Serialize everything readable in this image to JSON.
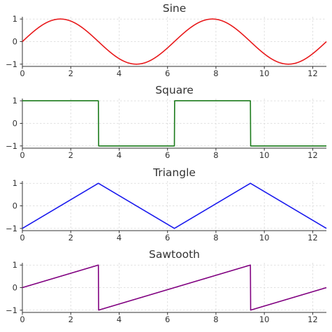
{
  "chart_data": [
    {
      "type": "line",
      "title": "Sine",
      "series": [
        {
          "color": "#e8191b",
          "wave": "sine",
          "period": 6.2832,
          "x": [
            0,
            12.566
          ],
          "ylim": [
            -1,
            1
          ]
        }
      ],
      "xlim": [
        0,
        12.566
      ],
      "ylim": [
        -1.1,
        1.1
      ],
      "x_ticks": [
        0,
        2,
        4,
        6,
        8,
        10,
        12
      ],
      "y_ticks": [
        -1,
        0,
        1
      ],
      "grid": true
    },
    {
      "type": "line",
      "title": "Square",
      "series": [
        {
          "color": "#1a7a1a",
          "wave": "square",
          "period": 6.2832,
          "x": [
            0,
            12.566
          ],
          "ylim": [
            -1,
            1
          ]
        }
      ],
      "xlim": [
        0,
        12.566
      ],
      "ylim": [
        -1.1,
        1.1
      ],
      "x_ticks": [
        0,
        2,
        4,
        6,
        8,
        10,
        12
      ],
      "y_ticks": [
        -1,
        0,
        1
      ],
      "grid": true
    },
    {
      "type": "line",
      "title": "Triangle",
      "series": [
        {
          "color": "#1a1aee",
          "wave": "triangle",
          "period": 6.2832,
          "x": [
            0,
            12.566
          ],
          "ylim": [
            -1,
            1
          ]
        }
      ],
      "xlim": [
        0,
        12.566
      ],
      "ylim": [
        -1.1,
        1.1
      ],
      "x_ticks": [
        0,
        2,
        4,
        6,
        8,
        10,
        12
      ],
      "y_ticks": [
        -1,
        0,
        1
      ],
      "grid": true
    },
    {
      "type": "line",
      "title": "Sawtooth",
      "series": [
        {
          "color": "#800080",
          "wave": "sawtooth",
          "period": 6.2832,
          "x": [
            0,
            12.566
          ],
          "ylim": [
            -1,
            1
          ]
        }
      ],
      "xlim": [
        0,
        12.566
      ],
      "ylim": [
        -1.1,
        1.1
      ],
      "x_ticks": [
        0,
        2,
        4,
        6,
        8,
        10,
        12
      ],
      "y_ticks": [
        -1,
        0,
        1
      ],
      "grid": true
    }
  ]
}
